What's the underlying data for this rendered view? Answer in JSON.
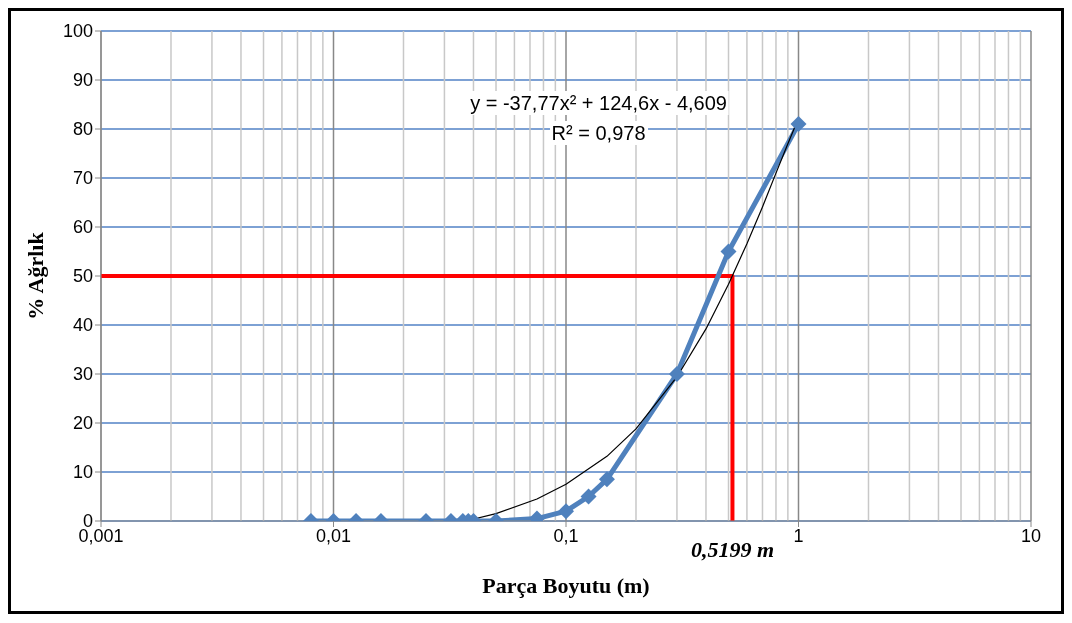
{
  "chart_data": {
    "type": "line",
    "xlabel": "Parça Boyutu (m)",
    "ylabel": "% Ağrlık",
    "log": "x",
    "grid": true,
    "legend": false,
    "line_style": "solid",
    "xlim": [
      0.001,
      10
    ],
    "xticks": [
      {
        "value": 0.001,
        "label": "0,001"
      },
      {
        "value": 0.01,
        "label": "0,01"
      },
      {
        "value": 0.1,
        "label": "0,1"
      },
      {
        "value": 1,
        "label": "1"
      },
      {
        "value": 10,
        "label": "10"
      }
    ],
    "ylim": [
      0,
      100
    ],
    "yticks": [
      0,
      10,
      20,
      30,
      40,
      50,
      60,
      70,
      80,
      90,
      100
    ],
    "series": [
      {
        "color": "#ff0000",
        "marker": "none",
        "x": [
          0.001,
          0.5199,
          0.5199
        ],
        "values": [
          50,
          50,
          0
        ]
      },
      {
        "color": "#4f81bd",
        "marker": "diamond",
        "x": [
          0.008,
          0.01,
          0.0125,
          0.016,
          0.025,
          0.032,
          0.036,
          0.038,
          0.04,
          0.05,
          0.075,
          0.1,
          0.125,
          0.15,
          0.3,
          0.5,
          1
        ],
        "values": [
          0,
          0,
          0,
          0,
          0,
          0,
          0,
          0,
          0,
          0,
          0.5,
          2,
          5,
          8.5,
          30,
          55,
          81
        ]
      },
      {
        "color": "#000000",
        "marker": "none",
        "x": [
          0.037,
          0.05,
          0.075,
          0.1,
          0.15,
          0.2,
          0.3,
          0.4,
          0.5,
          0.6,
          0.7,
          0.8,
          0.9,
          1
        ],
        "values": [
          0,
          1.5,
          4.5,
          7.5,
          13.2,
          18.8,
          29.4,
          39.2,
          48.3,
          56.6,
          64.1,
          71,
          77,
          82.2
        ]
      }
    ],
    "annotations": [
      "y = -37,77x² + 124,6x - 4,609",
      "R² = 0,978",
      {
        "text": "0,5199 m",
        "x": 0.5199,
        "y": 0
      }
    ]
  }
}
